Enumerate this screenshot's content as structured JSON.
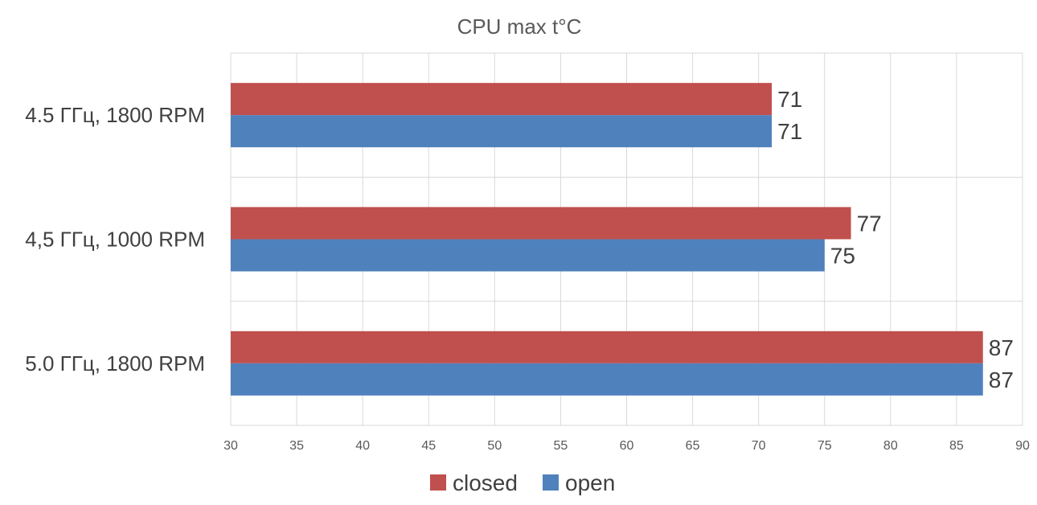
{
  "chart_data": {
    "type": "bar",
    "orientation": "horizontal",
    "title": "CPU max t°C",
    "xlabel": "",
    "ylabel": "",
    "categories": [
      "4.5 ГГц, 1800 RPM",
      "4,5 ГГц, 1000 RPM",
      "5.0 ГГц, 1800 RPM"
    ],
    "series": [
      {
        "name": "closed",
        "color": "#C0504D",
        "values": [
          71,
          77,
          87
        ]
      },
      {
        "name": "open",
        "color": "#4F81BD",
        "values": [
          71,
          75,
          87
        ]
      }
    ],
    "xlim": [
      30,
      90
    ],
    "x_ticks": [
      30,
      35,
      40,
      45,
      50,
      55,
      60,
      65,
      70,
      75,
      80,
      85,
      90
    ],
    "grid": true,
    "legend": "bottom",
    "data_labels": true
  }
}
